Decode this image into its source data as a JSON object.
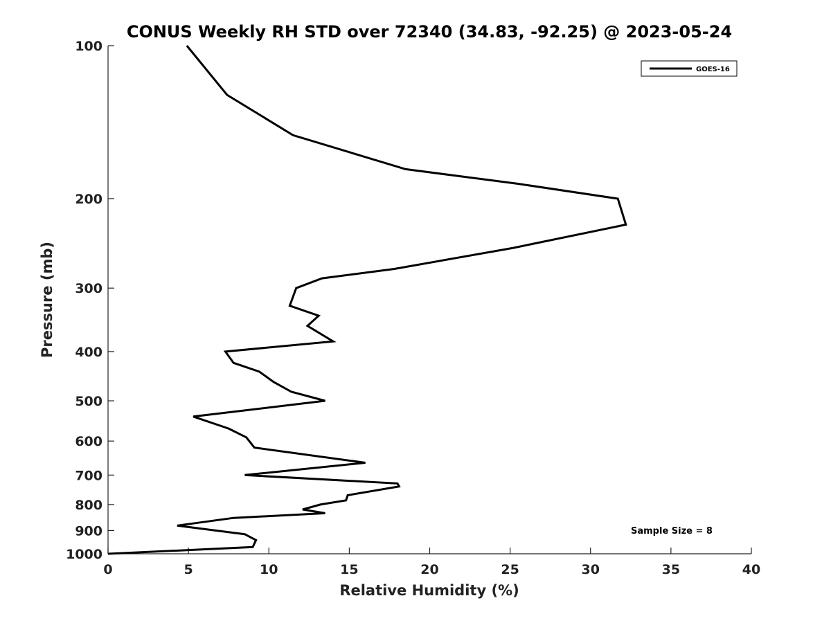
{
  "chart_data": {
    "type": "line",
    "title": "CONUS Weekly RH STD over 72340 (34.83, -92.25) @ 2023-05-24",
    "xlabel": "Relative Humidity (%)",
    "ylabel": "Pressure (mb)",
    "xlim": [
      0,
      40
    ],
    "ylim": [
      100,
      1000
    ],
    "y_scale": "log",
    "y_reversed": true,
    "grid": false,
    "legend_position": "top-right",
    "x_ticks": [
      0,
      5,
      10,
      15,
      20,
      25,
      30,
      35,
      40
    ],
    "y_ticks": [
      100,
      200,
      300,
      400,
      500,
      600,
      700,
      800,
      900,
      1000
    ],
    "series": [
      {
        "name": "GOES-16",
        "color": "#000000",
        "points": [
          {
            "x": 4.9,
            "y": 100
          },
          {
            "x": 7.4,
            "y": 125
          },
          {
            "x": 11.5,
            "y": 150
          },
          {
            "x": 18.5,
            "y": 175
          },
          {
            "x": 25.5,
            "y": 187
          },
          {
            "x": 31.7,
            "y": 200
          },
          {
            "x": 32.2,
            "y": 225
          },
          {
            "x": 25.2,
            "y": 250
          },
          {
            "x": 17.8,
            "y": 275
          },
          {
            "x": 13.3,
            "y": 287
          },
          {
            "x": 11.7,
            "y": 300
          },
          {
            "x": 11.3,
            "y": 325
          },
          {
            "x": 13.1,
            "y": 340
          },
          {
            "x": 12.4,
            "y": 356
          },
          {
            "x": 14.0,
            "y": 382
          },
          {
            "x": 7.3,
            "y": 400
          },
          {
            "x": 7.8,
            "y": 421
          },
          {
            "x": 9.4,
            "y": 438
          },
          {
            "x": 10.3,
            "y": 459
          },
          {
            "x": 11.4,
            "y": 480
          },
          {
            "x": 13.5,
            "y": 500
          },
          {
            "x": 5.3,
            "y": 537
          },
          {
            "x": 7.5,
            "y": 567
          },
          {
            "x": 8.6,
            "y": 590
          },
          {
            "x": 9.1,
            "y": 618
          },
          {
            "x": 16.0,
            "y": 662
          },
          {
            "x": 8.5,
            "y": 700
          },
          {
            "x": 18.0,
            "y": 727
          },
          {
            "x": 18.1,
            "y": 737
          },
          {
            "x": 14.9,
            "y": 767
          },
          {
            "x": 14.8,
            "y": 785
          },
          {
            "x": 13.2,
            "y": 800
          },
          {
            "x": 12.1,
            "y": 818
          },
          {
            "x": 13.5,
            "y": 832
          },
          {
            "x": 7.8,
            "y": 850
          },
          {
            "x": 4.3,
            "y": 880
          },
          {
            "x": 8.5,
            "y": 915
          },
          {
            "x": 9.2,
            "y": 940
          },
          {
            "x": 9.0,
            "y": 970
          },
          {
            "x": 0.0,
            "y": 1000
          }
        ]
      }
    ],
    "annotation": "Sample Size = 8"
  }
}
